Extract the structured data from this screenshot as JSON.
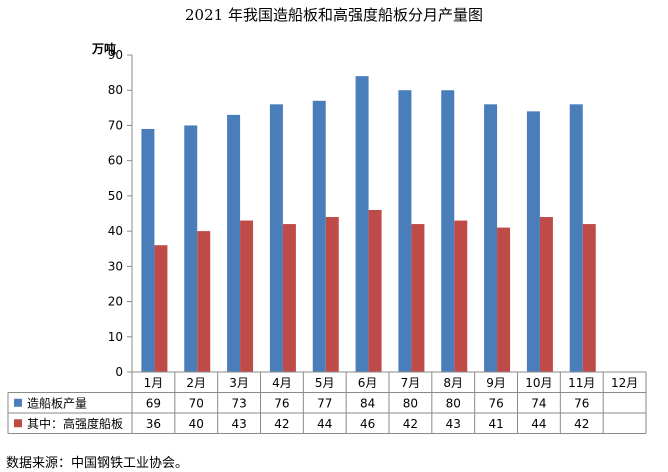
{
  "title": "2021 年我国造船板和高强度船板分月产量图",
  "source_note": "数据来源：中国钢铁工业协会。",
  "chart_data": {
    "type": "bar",
    "title": "2021 年我国造船板和高强度船板分月产量图",
    "ylabel": "万吨",
    "xlabel": "",
    "ylim": [
      0,
      90
    ],
    "yticks": [
      0,
      10,
      20,
      30,
      40,
      50,
      60,
      70,
      80,
      90
    ],
    "grid": false,
    "legend": "table-left",
    "categories": [
      "1月",
      "2月",
      "3月",
      "4月",
      "5月",
      "6月",
      "7月",
      "8月",
      "9月",
      "10月",
      "11月",
      "12月"
    ],
    "series": [
      {
        "name": "造船板产量",
        "color": "#4a7ebb",
        "values": [
          69,
          70,
          73,
          76,
          77,
          84,
          80,
          80,
          76,
          74,
          76,
          null
        ]
      },
      {
        "name": "其中：高强度船板",
        "color": "#be4b48",
        "values": [
          36,
          40,
          43,
          42,
          44,
          46,
          42,
          43,
          41,
          44,
          42,
          null
        ]
      }
    ]
  }
}
